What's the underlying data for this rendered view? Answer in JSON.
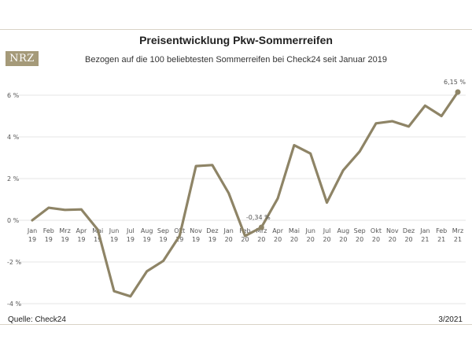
{
  "header": {
    "logo_text": "NRZ",
    "title": "Preisentwicklung Pkw-Sommerreifen",
    "subtitle": "Bezogen auf die 100 beliebtesten Sommerreifen bei Check24 seit Januar 2019"
  },
  "footer": {
    "source": "Quelle: Check24",
    "date": "3/2021"
  },
  "colors": {
    "line": "#8e8466",
    "grid": "#e6e6e6",
    "logo_bg": "#a59a79"
  },
  "chart_data": {
    "type": "line",
    "title": "Preisentwicklung Pkw-Sommerreifen",
    "subtitle": "Bezogen auf die 100 beliebtesten Sommerreifen bei Check24 seit Januar 2019",
    "ylabel": "",
    "xlabel": "",
    "ylim": [
      -4,
      6
    ],
    "grid": true,
    "yticks": [
      6,
      4,
      2,
      0,
      -2,
      -4
    ],
    "ytick_labels": [
      "6 %",
      "4 %",
      "2 %",
      "0 %",
      "-2 %",
      "-4 %"
    ],
    "categories": [
      [
        "Jan",
        "19"
      ],
      [
        "Feb",
        "19"
      ],
      [
        "Mrz",
        "19"
      ],
      [
        "Apr",
        "19"
      ],
      [
        "Mai",
        "19"
      ],
      [
        "Jun",
        "19"
      ],
      [
        "Jul",
        "19"
      ],
      [
        "Aug",
        "19"
      ],
      [
        "Sep",
        "19"
      ],
      [
        "Okt",
        "19"
      ],
      [
        "Nov",
        "19"
      ],
      [
        "Dez",
        "19"
      ],
      [
        "Jan",
        "20"
      ],
      [
        "Feb",
        "20"
      ],
      [
        "Mrz",
        "20"
      ],
      [
        "Apr",
        "20"
      ],
      [
        "Mai",
        "20"
      ],
      [
        "Jun",
        "20"
      ],
      [
        "Jul",
        "20"
      ],
      [
        "Aug",
        "20"
      ],
      [
        "Sep",
        "20"
      ],
      [
        "Okt",
        "20"
      ],
      [
        "Nov",
        "20"
      ],
      [
        "Dez",
        "20"
      ],
      [
        "Jan",
        "21"
      ],
      [
        "Feb",
        "21"
      ],
      [
        "Mrz",
        "21"
      ]
    ],
    "values": [
      0.0,
      0.6,
      0.5,
      0.52,
      -0.45,
      -3.4,
      -3.65,
      -2.45,
      -1.95,
      -0.75,
      2.6,
      2.65,
      1.3,
      -0.75,
      -0.34,
      1.05,
      3.6,
      3.2,
      0.85,
      2.4,
      3.3,
      4.65,
      4.75,
      4.5,
      5.5,
      5.0,
      6.15
    ],
    "annotations": [
      {
        "index": 14,
        "text": "-0,34 %"
      },
      {
        "index": 26,
        "text": "6,15 %"
      }
    ]
  }
}
